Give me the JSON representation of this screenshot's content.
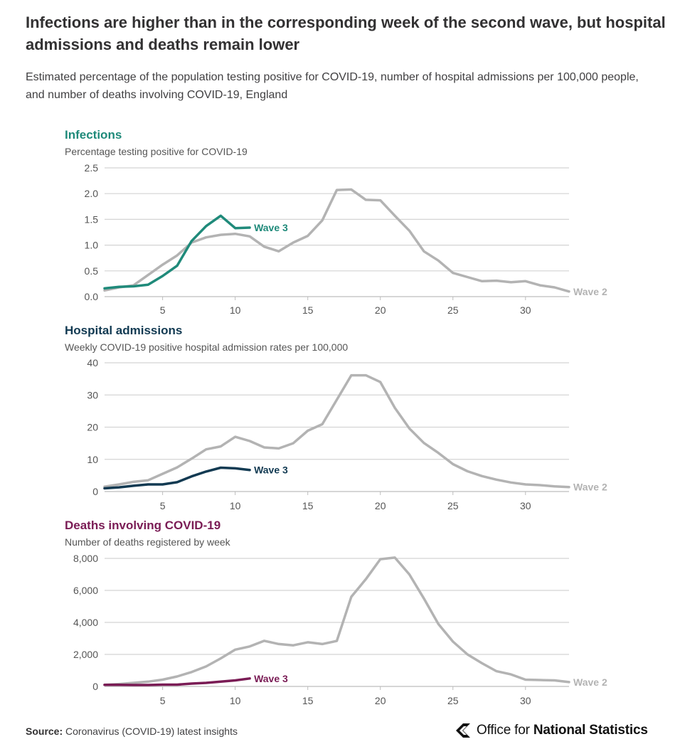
{
  "header": {
    "title": "Infections are higher than in the corresponding week of the second wave, but hospital admissions and deaths remain lower",
    "subtitle": "Estimated percentage of the population testing positive for COVID-19, number of hospital admissions per 100,000 people, and number of deaths involving COVID-19, England"
  },
  "footer": {
    "source_label": "Source:",
    "source_text": "Coronavirus (COVID-19) latest insights",
    "logo_text_prefix": "Office for ",
    "logo_text_bold": "National Statistics"
  },
  "colors": {
    "wave2": "#b3b3b3",
    "grid": "#d4d4d4",
    "axis_text": "#555555",
    "infections": "#1f8a7a",
    "hospital": "#123a52",
    "deaths": "#7a1c55"
  },
  "chart_data": [
    {
      "type": "line",
      "title": "Infections",
      "subtitle": "Percentage testing positive for COVID-19",
      "accent": "infections",
      "ylim": [
        0,
        2.5
      ],
      "yticks": [
        0,
        0.5,
        1.0,
        1.5,
        2.0,
        2.5
      ],
      "ytick_labels": [
        "0.0",
        "0.5",
        "1.0",
        "1.5",
        "2.0",
        "2.5"
      ],
      "xlim": [
        1,
        33
      ],
      "xticks": [
        5,
        10,
        15,
        20,
        25,
        30
      ],
      "grid": true,
      "series": [
        {
          "name": "Wave 2",
          "x": [
            1,
            2,
            3,
            4,
            5,
            6,
            7,
            8,
            9,
            10,
            11,
            12,
            13,
            14,
            15,
            16,
            17,
            18,
            19,
            20,
            21,
            22,
            23,
            24,
            25,
            26,
            27,
            28,
            29,
            30,
            31,
            32,
            33
          ],
          "values": [
            0.12,
            0.18,
            0.22,
            0.42,
            0.62,
            0.8,
            1.05,
            1.15,
            1.2,
            1.22,
            1.17,
            0.97,
            0.88,
            1.05,
            1.18,
            1.48,
            2.07,
            2.08,
            1.88,
            1.87,
            1.57,
            1.28,
            0.88,
            0.7,
            0.46,
            0.38,
            0.3,
            0.31,
            0.28,
            0.3,
            0.22,
            0.18,
            0.1
          ]
        },
        {
          "name": "Wave 3",
          "x": [
            1,
            2,
            3,
            4,
            5,
            6,
            7,
            8,
            9,
            10,
            11
          ],
          "values": [
            0.16,
            0.19,
            0.2,
            0.23,
            0.4,
            0.6,
            1.08,
            1.37,
            1.57,
            1.33,
            1.34
          ]
        }
      ]
    },
    {
      "type": "line",
      "title": "Hospital admissions",
      "subtitle": "Weekly COVID-19 positive hospital admission rates per 100,000",
      "accent": "hospital",
      "ylim": [
        0,
        40
      ],
      "yticks": [
        0,
        10,
        20,
        30,
        40
      ],
      "ytick_labels": [
        "0",
        "10",
        "20",
        "30",
        "40"
      ],
      "xlim": [
        1,
        33
      ],
      "xticks": [
        5,
        10,
        15,
        20,
        25,
        30
      ],
      "grid": true,
      "series": [
        {
          "name": "Wave 2",
          "x": [
            1,
            2,
            3,
            4,
            5,
            6,
            7,
            8,
            9,
            10,
            11,
            12,
            13,
            14,
            15,
            16,
            17,
            18,
            19,
            20,
            21,
            22,
            23,
            24,
            25,
            26,
            27,
            28,
            29,
            30,
            31,
            32,
            33
          ],
          "values": [
            1.5,
            2.2,
            3.0,
            3.5,
            5.5,
            7.5,
            10.2,
            13.1,
            14.0,
            17.0,
            15.7,
            13.7,
            13.4,
            15.0,
            18.9,
            20.9,
            28.5,
            36.1,
            36.1,
            34.0,
            26.0,
            19.6,
            15.1,
            12.0,
            8.5,
            6.3,
            4.8,
            3.7,
            2.8,
            2.2,
            2.0,
            1.6,
            1.4
          ]
        },
        {
          "name": "Wave 3",
          "x": [
            1,
            2,
            3,
            4,
            5,
            6,
            7,
            8,
            9,
            10,
            11
          ],
          "values": [
            1.0,
            1.3,
            1.8,
            2.2,
            2.2,
            2.9,
            4.7,
            6.2,
            7.4,
            7.2,
            6.7
          ]
        }
      ]
    },
    {
      "type": "line",
      "title": "Deaths involving COVID-19",
      "subtitle": "Number of deaths registered by week",
      "accent": "deaths",
      "ylim": [
        0,
        8000
      ],
      "yticks": [
        0,
        2000,
        4000,
        6000,
        8000
      ],
      "ytick_labels": [
        "0",
        "2,000",
        "4,000",
        "6,000",
        "8,000"
      ],
      "xlim": [
        1,
        33
      ],
      "xticks": [
        5,
        10,
        15,
        20,
        25,
        30
      ],
      "grid": true,
      "series": [
        {
          "name": "Wave 2",
          "x": [
            1,
            2,
            3,
            4,
            5,
            6,
            7,
            8,
            9,
            10,
            11,
            12,
            13,
            14,
            15,
            16,
            17,
            18,
            19,
            20,
            21,
            22,
            23,
            24,
            25,
            26,
            27,
            28,
            29,
            30,
            31,
            32,
            33
          ],
          "values": [
            100,
            150,
            220,
            300,
            420,
            620,
            900,
            1250,
            1750,
            2300,
            2500,
            2850,
            2650,
            2570,
            2760,
            2650,
            2840,
            5600,
            6700,
            7950,
            8050,
            7000,
            5500,
            3900,
            2800,
            2000,
            1450,
            950,
            750,
            420,
            400,
            380,
            270
          ]
        },
        {
          "name": "Wave 3",
          "x": [
            1,
            2,
            3,
            4,
            5,
            6,
            7,
            8,
            9,
            10,
            11
          ],
          "values": [
            100,
            100,
            90,
            90,
            110,
            110,
            180,
            220,
            300,
            380,
            500
          ]
        }
      ]
    }
  ]
}
